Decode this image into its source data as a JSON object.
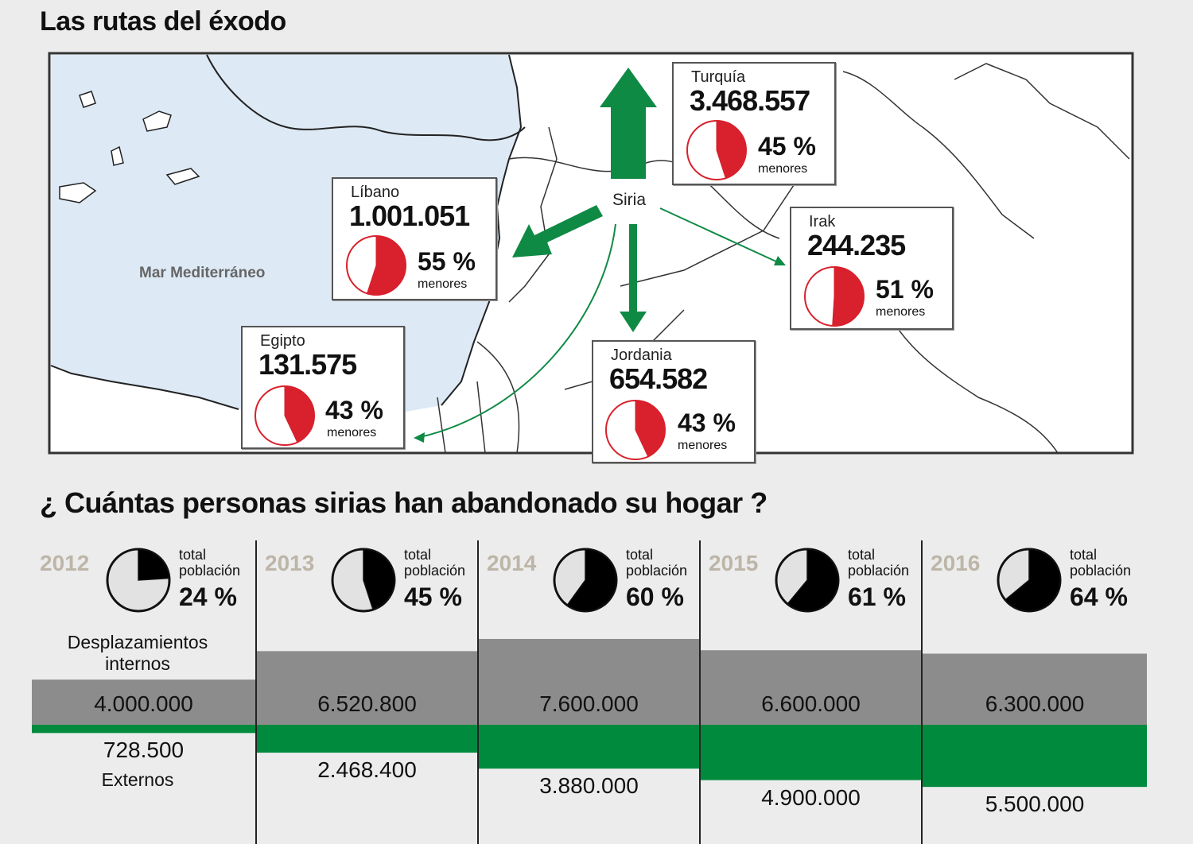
{
  "map_title": "Las rutas del éxodo",
  "question_title": "¿ Cuántas personas sirias han abandonado su hogar ?",
  "map": {
    "sea_label": "Mar Mediterráneo",
    "origin_label": "Siria",
    "destinations": [
      {
        "country": "Turquía",
        "refugees": "3.468.557",
        "minors_pct_label": "45 %",
        "minors_label": "menores"
      },
      {
        "country": "Líbano",
        "refugees": "1.001.051",
        "minors_pct_label": "55 %",
        "minors_label": "menores"
      },
      {
        "country": "Irak",
        "refugees": "244.235",
        "minors_pct_label": "51 %",
        "minors_label": "menores"
      },
      {
        "country": "Egipto",
        "refugees": "131.575",
        "minors_pct_label": "43 %",
        "minors_label": "menores"
      },
      {
        "country": "Jordania",
        "refugees": "654.582",
        "minors_pct_label": "43 %",
        "minors_label": "menores"
      }
    ]
  },
  "timeline": {
    "internal_label": "Desplazamientos internos",
    "external_label": "Externos",
    "total_label": "total población",
    "years": [
      {
        "year": "2012",
        "pct_label": "24 %",
        "internal": "4.000.000",
        "external": "728.500"
      },
      {
        "year": "2013",
        "pct_label": "45 %",
        "internal": "6.520.800",
        "external": "2.468.400"
      },
      {
        "year": "2014",
        "pct_label": "60 %",
        "internal": "7.600.000",
        "external": "3.880.000"
      },
      {
        "year": "2015",
        "pct_label": "61 %",
        "internal": "6.600.000",
        "external": "4.900.000"
      },
      {
        "year": "2016",
        "pct_label": "64 %",
        "internal": "6.300.000",
        "external": "5.500.000"
      }
    ]
  },
  "colors": {
    "internal": "#8c8c8c",
    "external": "#008a3e",
    "minors": "#d8212c",
    "arrow": "#0f8a45",
    "sea": "#dde9f5"
  },
  "chart_data": [
    {
      "type": "pie",
      "title": "Las rutas del éxodo",
      "description_unit": "menores",
      "categories": [
        "Turquía",
        "Líbano",
        "Irak",
        "Egipto",
        "Jordania"
      ],
      "refugees": [
        3468557,
        1001051,
        244235,
        131575,
        654582
      ],
      "minors_pct": [
        45,
        55,
        51,
        43,
        43
      ]
    },
    {
      "type": "bar",
      "title": "¿ Cuántas personas sirias han abandonado su hogar ?",
      "categories": [
        "2012",
        "2013",
        "2014",
        "2015",
        "2016"
      ],
      "series": [
        {
          "name": "Desplazamientos internos",
          "values": [
            4000000,
            6520800,
            7600000,
            6600000,
            6300000
          ]
        },
        {
          "name": "Externos",
          "values": [
            728500,
            2468400,
            3880000,
            4900000,
            5500000
          ]
        }
      ],
      "total_population_pct": [
        24,
        45,
        60,
        61,
        64
      ]
    }
  ]
}
